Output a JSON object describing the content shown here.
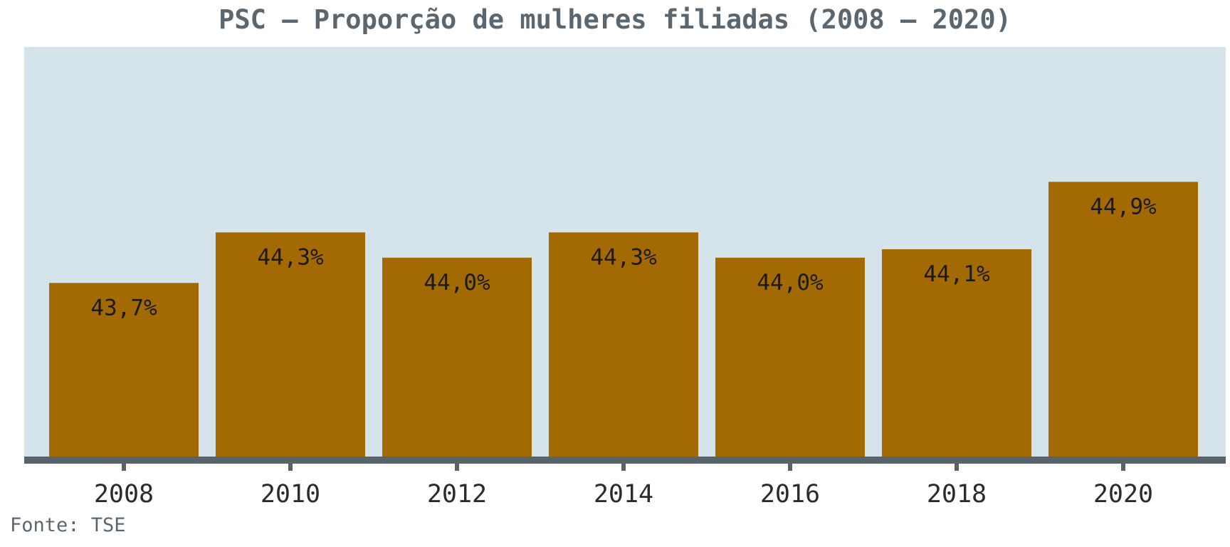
{
  "title": "PSC – Proporção de mulheres filiadas (2008 – 2020)",
  "source": "Fonte: TSE",
  "colors": {
    "background": "#d5e4eb",
    "bar": "#a36a03",
    "axis": "#59636b",
    "label": "#1a1a1a",
    "tick_text": "#2b2b2b"
  },
  "chart_data": {
    "type": "bar",
    "title": "PSC – Proporção de mulheres filiadas (2008 – 2020)",
    "xlabel": "",
    "ylabel": "",
    "categories": [
      "2008",
      "2010",
      "2012",
      "2014",
      "2016",
      "2018",
      "2020"
    ],
    "values": [
      43.7,
      44.3,
      44.0,
      44.3,
      44.0,
      44.1,
      44.9
    ],
    "value_labels": [
      "43,7%",
      "44,3%",
      "44,0%",
      "44,3%",
      "44,0%",
      "44,1%",
      "44,9%"
    ],
    "ylim": [
      41.64,
      46.5
    ],
    "grid": false,
    "legend": "none"
  }
}
